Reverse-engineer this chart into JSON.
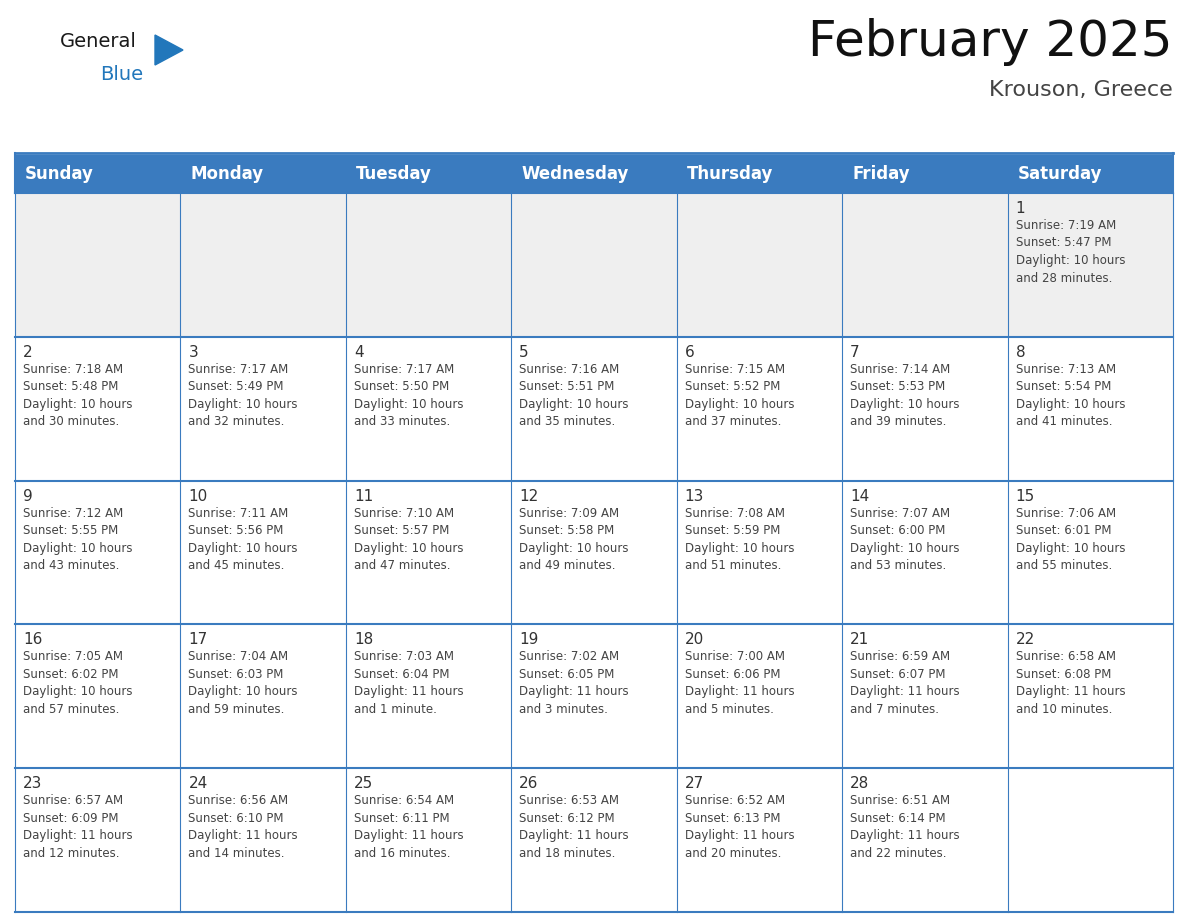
{
  "title": "February 2025",
  "subtitle": "Krouson, Greece",
  "header_color": "#3A7BBF",
  "header_text_color": "#FFFFFF",
  "background_color": "#FFFFFF",
  "row0_bg_color": "#EFEFEF",
  "border_color": "#3A7BBF",
  "day_headers": [
    "Sunday",
    "Monday",
    "Tuesday",
    "Wednesday",
    "Thursday",
    "Friday",
    "Saturday"
  ],
  "title_fontsize": 36,
  "subtitle_fontsize": 16,
  "header_fontsize": 12,
  "day_num_fontsize": 11,
  "cell_fontsize": 8.5,
  "weeks": [
    [
      {
        "day": "",
        "info": ""
      },
      {
        "day": "",
        "info": ""
      },
      {
        "day": "",
        "info": ""
      },
      {
        "day": "",
        "info": ""
      },
      {
        "day": "",
        "info": ""
      },
      {
        "day": "",
        "info": ""
      },
      {
        "day": "1",
        "info": "Sunrise: 7:19 AM\nSunset: 5:47 PM\nDaylight: 10 hours\nand 28 minutes."
      }
    ],
    [
      {
        "day": "2",
        "info": "Sunrise: 7:18 AM\nSunset: 5:48 PM\nDaylight: 10 hours\nand 30 minutes."
      },
      {
        "day": "3",
        "info": "Sunrise: 7:17 AM\nSunset: 5:49 PM\nDaylight: 10 hours\nand 32 minutes."
      },
      {
        "day": "4",
        "info": "Sunrise: 7:17 AM\nSunset: 5:50 PM\nDaylight: 10 hours\nand 33 minutes."
      },
      {
        "day": "5",
        "info": "Sunrise: 7:16 AM\nSunset: 5:51 PM\nDaylight: 10 hours\nand 35 minutes."
      },
      {
        "day": "6",
        "info": "Sunrise: 7:15 AM\nSunset: 5:52 PM\nDaylight: 10 hours\nand 37 minutes."
      },
      {
        "day": "7",
        "info": "Sunrise: 7:14 AM\nSunset: 5:53 PM\nDaylight: 10 hours\nand 39 minutes."
      },
      {
        "day": "8",
        "info": "Sunrise: 7:13 AM\nSunset: 5:54 PM\nDaylight: 10 hours\nand 41 minutes."
      }
    ],
    [
      {
        "day": "9",
        "info": "Sunrise: 7:12 AM\nSunset: 5:55 PM\nDaylight: 10 hours\nand 43 minutes."
      },
      {
        "day": "10",
        "info": "Sunrise: 7:11 AM\nSunset: 5:56 PM\nDaylight: 10 hours\nand 45 minutes."
      },
      {
        "day": "11",
        "info": "Sunrise: 7:10 AM\nSunset: 5:57 PM\nDaylight: 10 hours\nand 47 minutes."
      },
      {
        "day": "12",
        "info": "Sunrise: 7:09 AM\nSunset: 5:58 PM\nDaylight: 10 hours\nand 49 minutes."
      },
      {
        "day": "13",
        "info": "Sunrise: 7:08 AM\nSunset: 5:59 PM\nDaylight: 10 hours\nand 51 minutes."
      },
      {
        "day": "14",
        "info": "Sunrise: 7:07 AM\nSunset: 6:00 PM\nDaylight: 10 hours\nand 53 minutes."
      },
      {
        "day": "15",
        "info": "Sunrise: 7:06 AM\nSunset: 6:01 PM\nDaylight: 10 hours\nand 55 minutes."
      }
    ],
    [
      {
        "day": "16",
        "info": "Sunrise: 7:05 AM\nSunset: 6:02 PM\nDaylight: 10 hours\nand 57 minutes."
      },
      {
        "day": "17",
        "info": "Sunrise: 7:04 AM\nSunset: 6:03 PM\nDaylight: 10 hours\nand 59 minutes."
      },
      {
        "day": "18",
        "info": "Sunrise: 7:03 AM\nSunset: 6:04 PM\nDaylight: 11 hours\nand 1 minute."
      },
      {
        "day": "19",
        "info": "Sunrise: 7:02 AM\nSunset: 6:05 PM\nDaylight: 11 hours\nand 3 minutes."
      },
      {
        "day": "20",
        "info": "Sunrise: 7:00 AM\nSunset: 6:06 PM\nDaylight: 11 hours\nand 5 minutes."
      },
      {
        "day": "21",
        "info": "Sunrise: 6:59 AM\nSunset: 6:07 PM\nDaylight: 11 hours\nand 7 minutes."
      },
      {
        "day": "22",
        "info": "Sunrise: 6:58 AM\nSunset: 6:08 PM\nDaylight: 11 hours\nand 10 minutes."
      }
    ],
    [
      {
        "day": "23",
        "info": "Sunrise: 6:57 AM\nSunset: 6:09 PM\nDaylight: 11 hours\nand 12 minutes."
      },
      {
        "day": "24",
        "info": "Sunrise: 6:56 AM\nSunset: 6:10 PM\nDaylight: 11 hours\nand 14 minutes."
      },
      {
        "day": "25",
        "info": "Sunrise: 6:54 AM\nSunset: 6:11 PM\nDaylight: 11 hours\nand 16 minutes."
      },
      {
        "day": "26",
        "info": "Sunrise: 6:53 AM\nSunset: 6:12 PM\nDaylight: 11 hours\nand 18 minutes."
      },
      {
        "day": "27",
        "info": "Sunrise: 6:52 AM\nSunset: 6:13 PM\nDaylight: 11 hours\nand 20 minutes."
      },
      {
        "day": "28",
        "info": "Sunrise: 6:51 AM\nSunset: 6:14 PM\nDaylight: 11 hours\nand 22 minutes."
      },
      {
        "day": "",
        "info": ""
      }
    ]
  ],
  "logo_text_general": "General",
  "logo_text_blue": "Blue",
  "logo_color_general": "#1a1a1a",
  "logo_color_blue": "#2277BB",
  "logo_triangle_color": "#2277BB"
}
